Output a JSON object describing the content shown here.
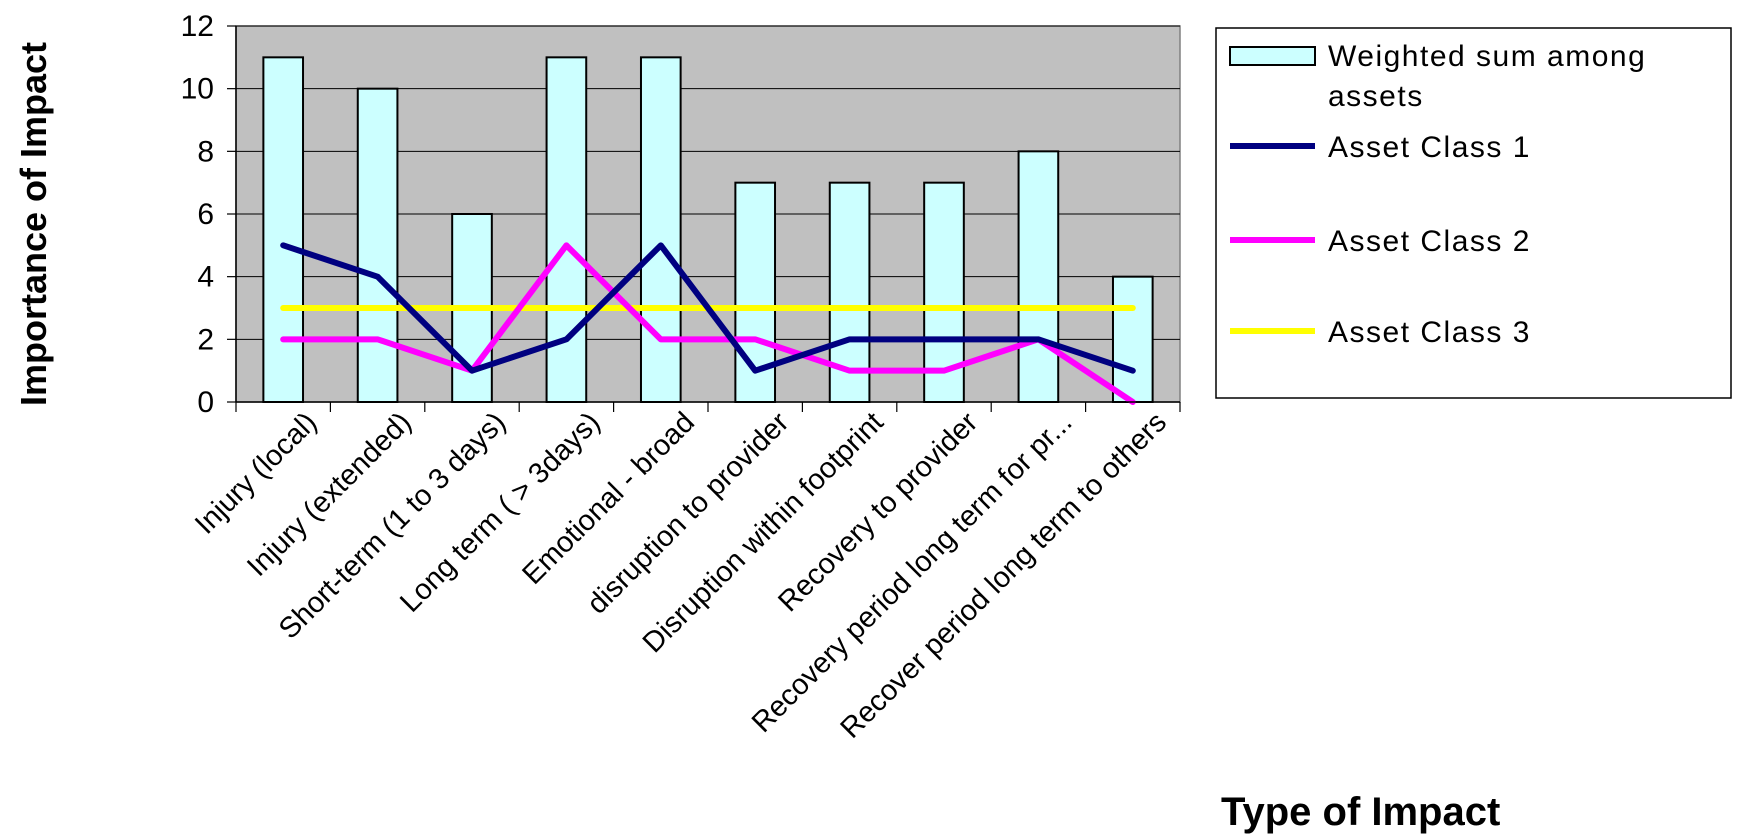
{
  "chart_data": {
    "type": "bar",
    "title": "",
    "xlabel": "Type of Impact",
    "ylabel": "Importance of Impact",
    "ylim": [
      0,
      12
    ],
    "yticks": [
      0,
      2,
      4,
      6,
      8,
      10,
      12
    ],
    "grid": true,
    "legend_position": "right",
    "categories": [
      "Injury (local)",
      "Injury (extended)",
      "Short-term (1 to 3 days)",
      "Long term ( > 3days)",
      "Emotional  - broad",
      "disruption to provider",
      "Disruption within footprint",
      "Recovery to provider",
      "Recovery period long term for pr...",
      "Recover period long term to others"
    ],
    "series": [
      {
        "name": "Weighted sum among assets",
        "kind": "bar",
        "color": "#ccffff",
        "values": [
          11,
          10,
          6,
          11,
          11,
          7,
          7,
          7,
          8,
          4
        ]
      },
      {
        "name": "Asset Class 1",
        "kind": "line",
        "color": "#000080",
        "values": [
          5,
          4,
          1,
          2,
          5,
          1,
          2,
          2,
          2,
          1
        ]
      },
      {
        "name": "Asset Class 2",
        "kind": "line",
        "color": "#ff00ff",
        "values": [
          2,
          2,
          1,
          5,
          2,
          2,
          1,
          1,
          2,
          0
        ]
      },
      {
        "name": "Asset Class 3",
        "kind": "line",
        "color": "#ffff00",
        "values": [
          3,
          3,
          3,
          3,
          3,
          3,
          3,
          3,
          3,
          3
        ]
      }
    ],
    "legend": {
      "entries": [
        {
          "lines": [
            "Weighted sum among",
            "assets"
          ]
        },
        {
          "lines": [
            "Asset Class 1"
          ]
        },
        {
          "lines": [
            "Asset Class 2"
          ]
        },
        {
          "lines": [
            "Asset Class 3"
          ]
        }
      ]
    },
    "plot_background": "#c0c0c0"
  }
}
